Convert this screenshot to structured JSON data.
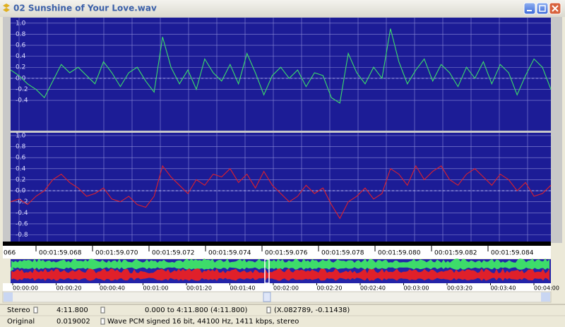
{
  "window": {
    "title": "02 Sunshine of Your Love.wav"
  },
  "channels": [
    {
      "color": "#3ddc6a",
      "ylim": [
        -0.95,
        1.1
      ],
      "yticks": [
        {
          "value": 1,
          "label": "1.0"
        },
        0.8,
        0.6,
        0.4,
        0.2,
        {
          "value": 0,
          "label": "0.0"
        },
        -0.2,
        -0.4
      ],
      "values": [
        0.15,
        0.05,
        -0.1,
        -0.2,
        -0.35,
        -0.05,
        0.25,
        0.1,
        0.2,
        0.05,
        -0.1,
        0.3,
        0.1,
        -0.15,
        0.1,
        0.2,
        -0.05,
        -0.25,
        0.75,
        0.2,
        -0.1,
        0.15,
        -0.2,
        0.35,
        0.1,
        -0.05,
        0.25,
        -0.1,
        0.45,
        0.1,
        -0.3,
        0.05,
        0.2,
        0.0,
        0.15,
        -0.15,
        0.1,
        0.05,
        -0.35,
        -0.45,
        0.45,
        0.1,
        -0.1,
        0.2,
        0.0,
        0.9,
        0.3,
        -0.1,
        0.15,
        0.35,
        -0.05,
        0.25,
        0.1,
        -0.15,
        0.2,
        0.0,
        0.3,
        -0.1,
        0.25,
        0.1,
        -0.3,
        0.05,
        0.35,
        0.2,
        -0.2
      ]
    },
    {
      "color": "#e0202a",
      "ylim": [
        -0.92,
        1.05
      ],
      "yticks": [
        {
          "value": 1,
          "label": "1.0"
        },
        0.8,
        0.6,
        0.4,
        0.2,
        {
          "value": 0,
          "label": "0.0"
        },
        -0.2,
        -0.4,
        -0.6,
        -0.8
      ],
      "values": [
        -0.2,
        -0.15,
        -0.25,
        -0.1,
        0.0,
        0.2,
        0.3,
        0.15,
        0.05,
        -0.1,
        -0.05,
        0.05,
        -0.15,
        -0.2,
        -0.1,
        -0.25,
        -0.3,
        -0.1,
        0.45,
        0.25,
        0.1,
        -0.05,
        0.2,
        0.1,
        0.3,
        0.25,
        0.4,
        0.15,
        0.3,
        0.05,
        0.35,
        0.1,
        -0.05,
        -0.2,
        -0.1,
        0.1,
        -0.05,
        0.05,
        -0.25,
        -0.5,
        -0.2,
        -0.1,
        0.05,
        -0.15,
        -0.05,
        0.4,
        0.3,
        0.1,
        0.45,
        0.2,
        0.35,
        0.45,
        0.2,
        0.1,
        0.3,
        0.4,
        0.25,
        0.1,
        0.3,
        0.2,
        0.0,
        0.15,
        -0.1,
        -0.05,
        0.1
      ]
    }
  ],
  "time_ruler": [
    "066",
    "00:01:59.068",
    "00:01:59.070",
    "00:01:59.072",
    "00:01:59.074",
    "00:01:59.076",
    "00:01:59.078",
    "00:01:59.080",
    "00:01:59.082",
    "00:01:59.084"
  ],
  "overview_ruler": [
    "00:00:00",
    "00:00:20",
    "00:00:40",
    "00:01:00",
    "00:01:20",
    "00:01:40",
    "00:02:00",
    "00:02:20",
    "00:02:40",
    "00:03:00",
    "00:03:20",
    "00:03:40",
    "00:04:00"
  ],
  "status": {
    "row1": [
      "Stereo",
      "4:11.800",
      "0.000 to 4:11.800 (4:11.800)",
      "(X.082789, -0.11438)"
    ],
    "row2": [
      "Original",
      "0.019002",
      "Wave PCM signed 16 bit, 44100 Hz, 1411 kbps, stereo"
    ]
  }
}
